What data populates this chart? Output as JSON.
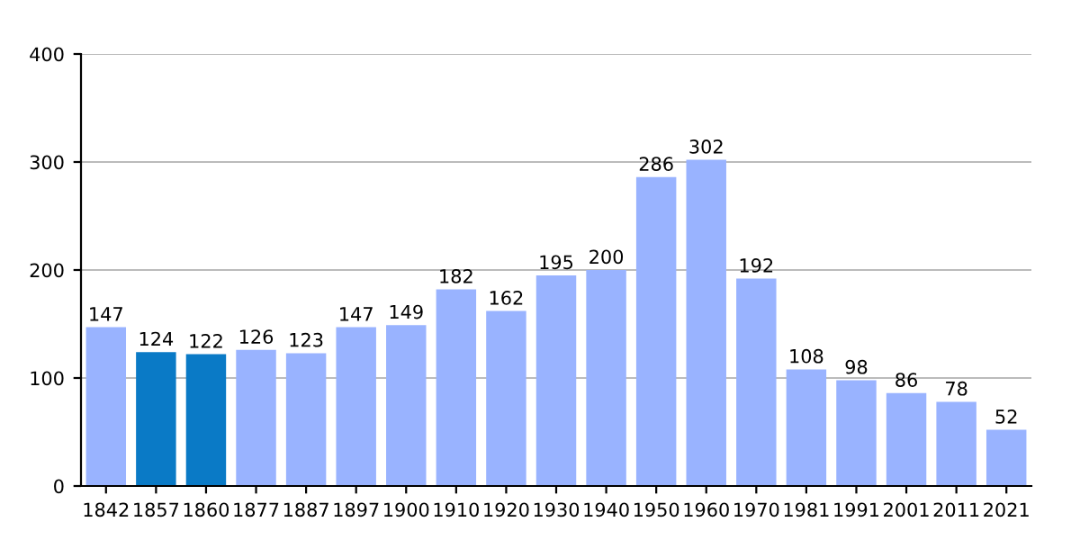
{
  "chart_data": {
    "type": "bar",
    "categories": [
      "1842",
      "1857",
      "1860",
      "1877",
      "1887",
      "1897",
      "1900",
      "1910",
      "1920",
      "1930",
      "1940",
      "1950",
      "1960",
      "1970",
      "1981",
      "1991",
      "2001",
      "2011",
      "2021"
    ],
    "values": [
      147,
      124,
      122,
      126,
      123,
      147,
      149,
      182,
      162,
      195,
      200,
      286,
      302,
      192,
      108,
      98,
      86,
      78,
      52
    ],
    "colors": [
      "#99b3ff",
      "#0a7ac6",
      "#0a7ac6",
      "#99b3ff",
      "#99b3ff",
      "#99b3ff",
      "#99b3ff",
      "#99b3ff",
      "#99b3ff",
      "#99b3ff",
      "#99b3ff",
      "#99b3ff",
      "#99b3ff",
      "#99b3ff",
      "#99b3ff",
      "#99b3ff",
      "#99b3ff",
      "#99b3ff",
      "#99b3ff"
    ],
    "ylim": [
      0,
      400
    ],
    "yticks": [
      0,
      100,
      200,
      300,
      400
    ],
    "grid": "y",
    "data_labels": true
  }
}
